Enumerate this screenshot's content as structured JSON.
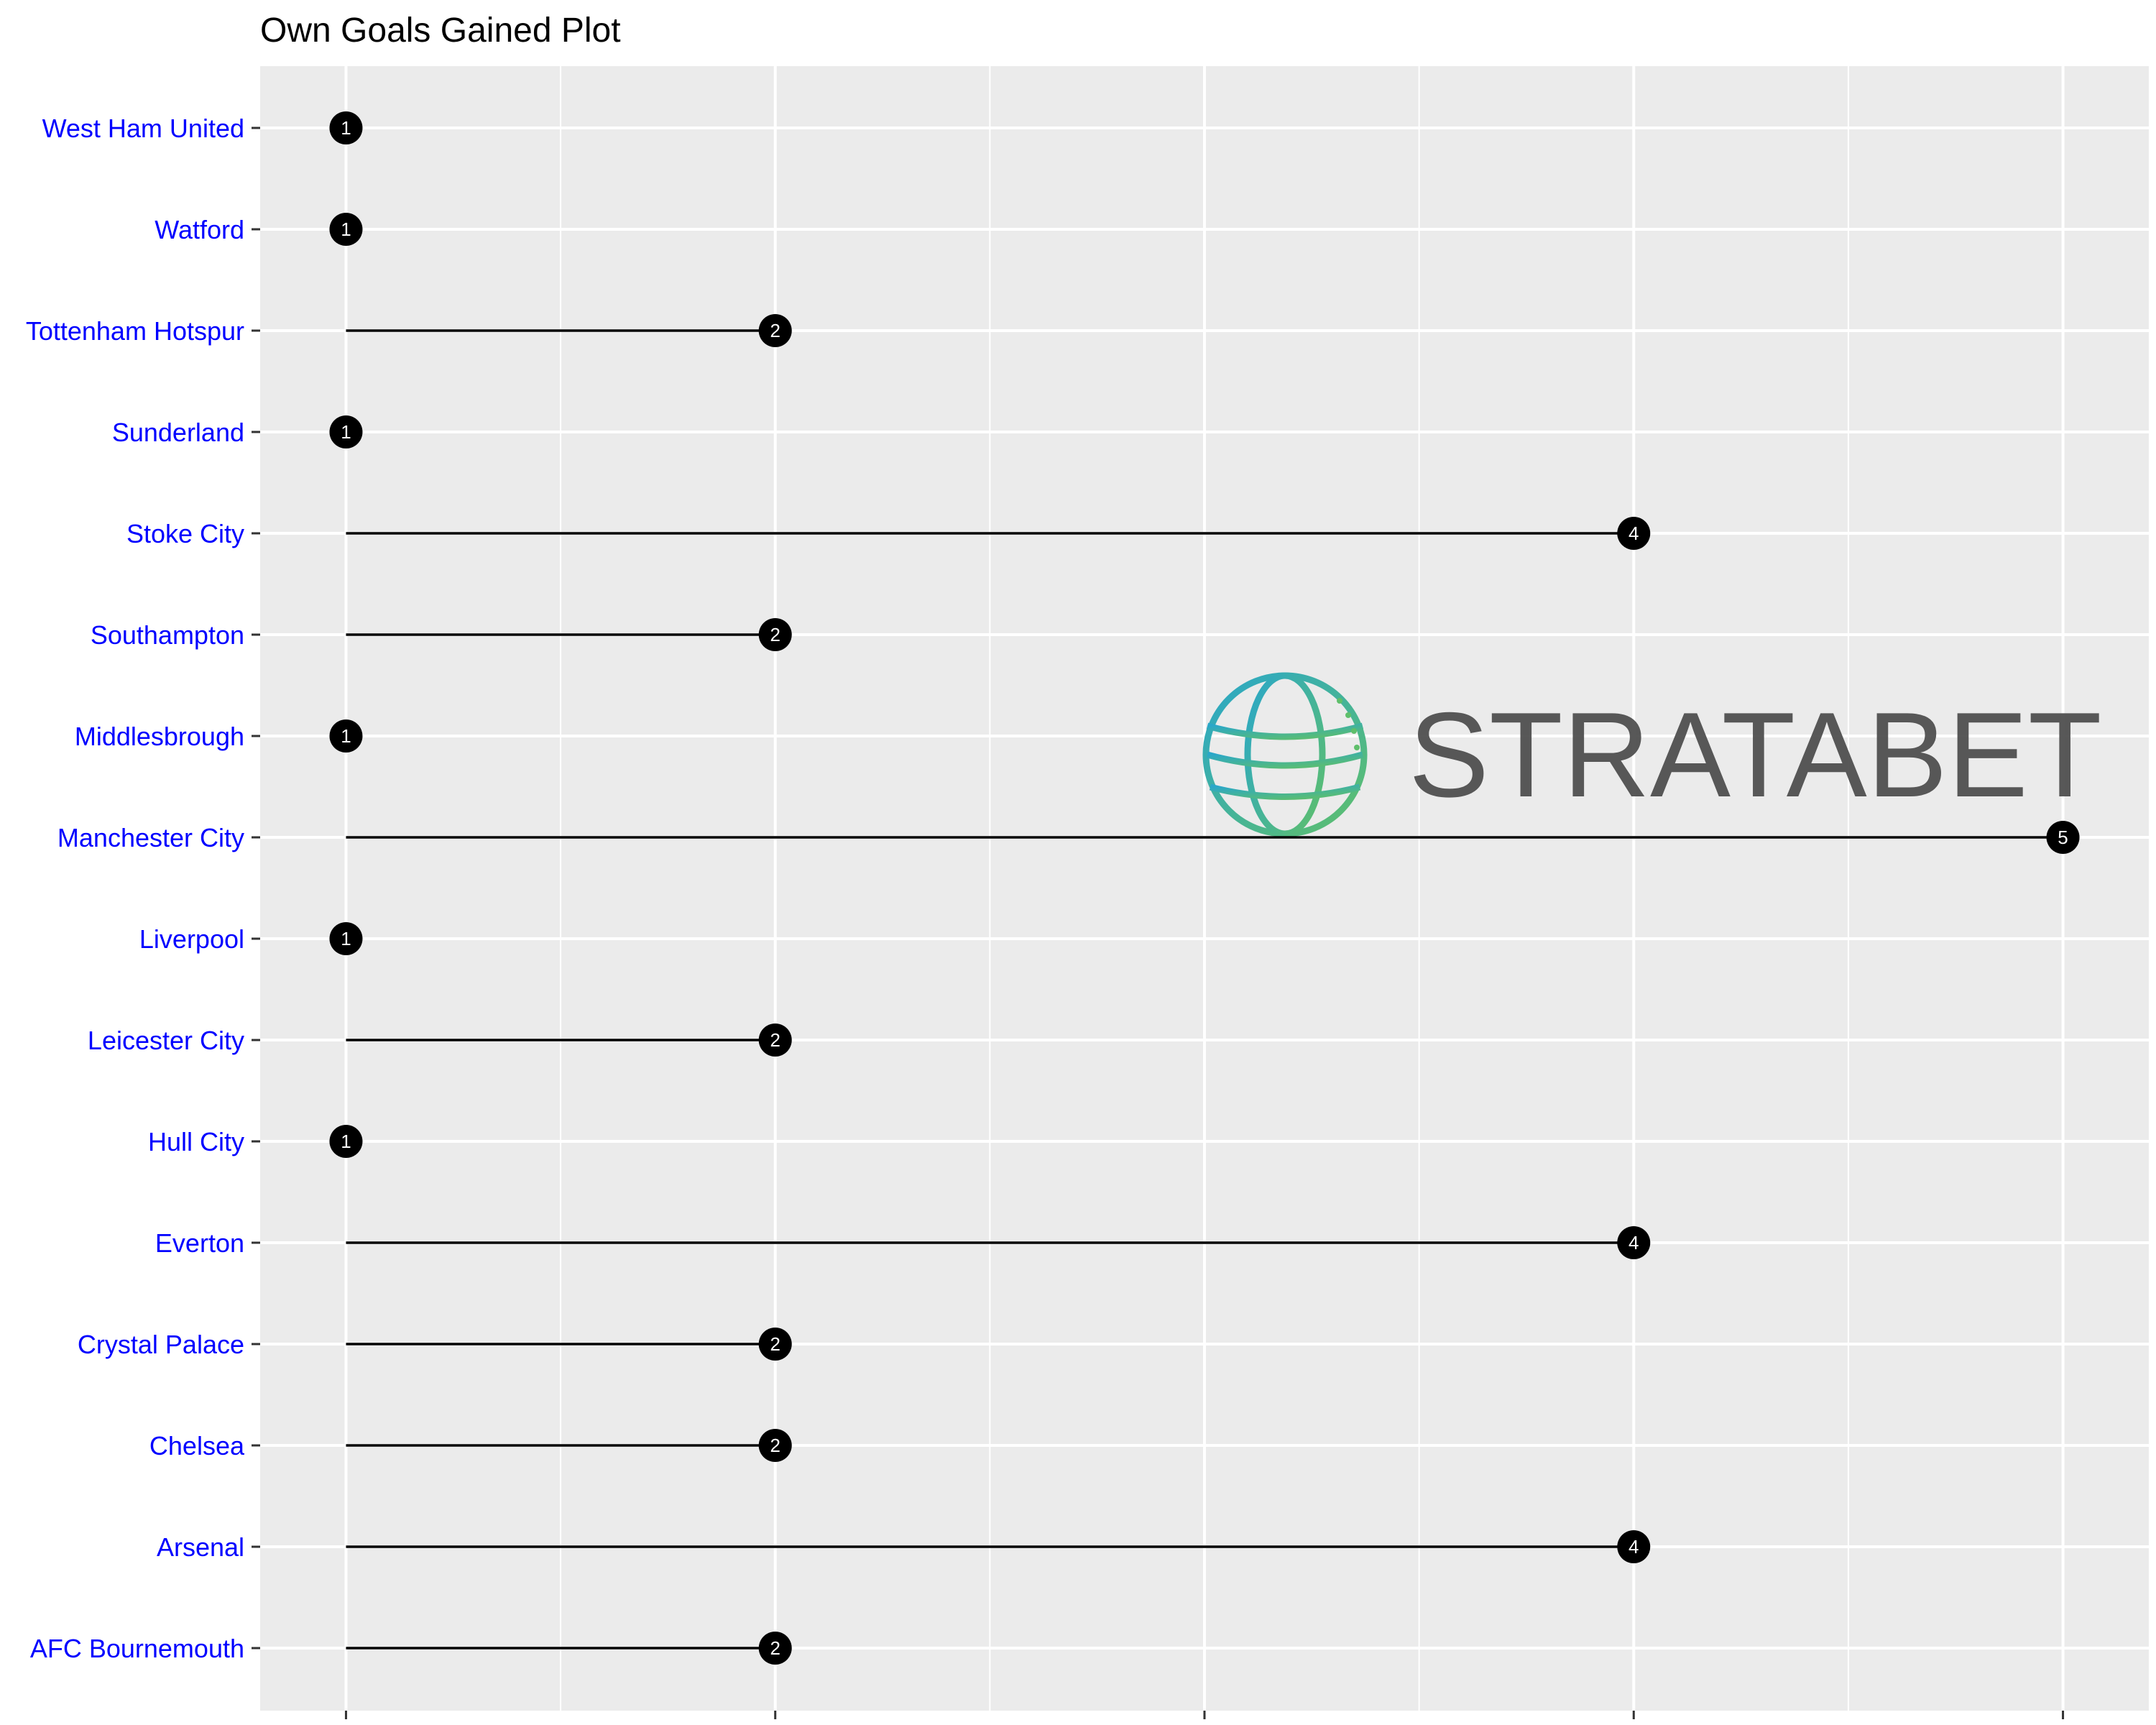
{
  "chart_data": {
    "type": "lollipop",
    "title": "Own Goals Gained Plot",
    "xlabel": "",
    "ylabel": "",
    "xlim": [
      0.8,
      5.2
    ],
    "x_ticks": [
      1,
      2,
      3,
      4,
      5
    ],
    "x_tick_labels_visible": false,
    "baseline": 1,
    "grid": true,
    "legend": "none",
    "categories": [
      "West Ham United",
      "Watford",
      "Tottenham Hotspur",
      "Sunderland",
      "Stoke City",
      "Southampton",
      "Middlesbrough",
      "Manchester City",
      "Liverpool",
      "Leicester City",
      "Hull City",
      "Everton",
      "Crystal Palace",
      "Chelsea",
      "Arsenal",
      "AFC Bournemouth"
    ],
    "values": [
      1,
      1,
      2,
      1,
      4,
      2,
      1,
      5,
      1,
      2,
      1,
      4,
      2,
      2,
      4,
      2
    ],
    "colors": {
      "panel_background": "#ebebeb",
      "grid_line": "#ffffff",
      "axis_label": "#0000ff",
      "tick_mark": "#333333",
      "segment": "#000000",
      "point": "#000000",
      "point_label": "#ffffff",
      "title": "#000000"
    }
  },
  "watermark": {
    "text": "STRATABET",
    "icon": "globe-icon",
    "text_color": "#4a4a4a",
    "icon_color_start": "#2aa7c9",
    "icon_color_end": "#5fbf6b"
  }
}
